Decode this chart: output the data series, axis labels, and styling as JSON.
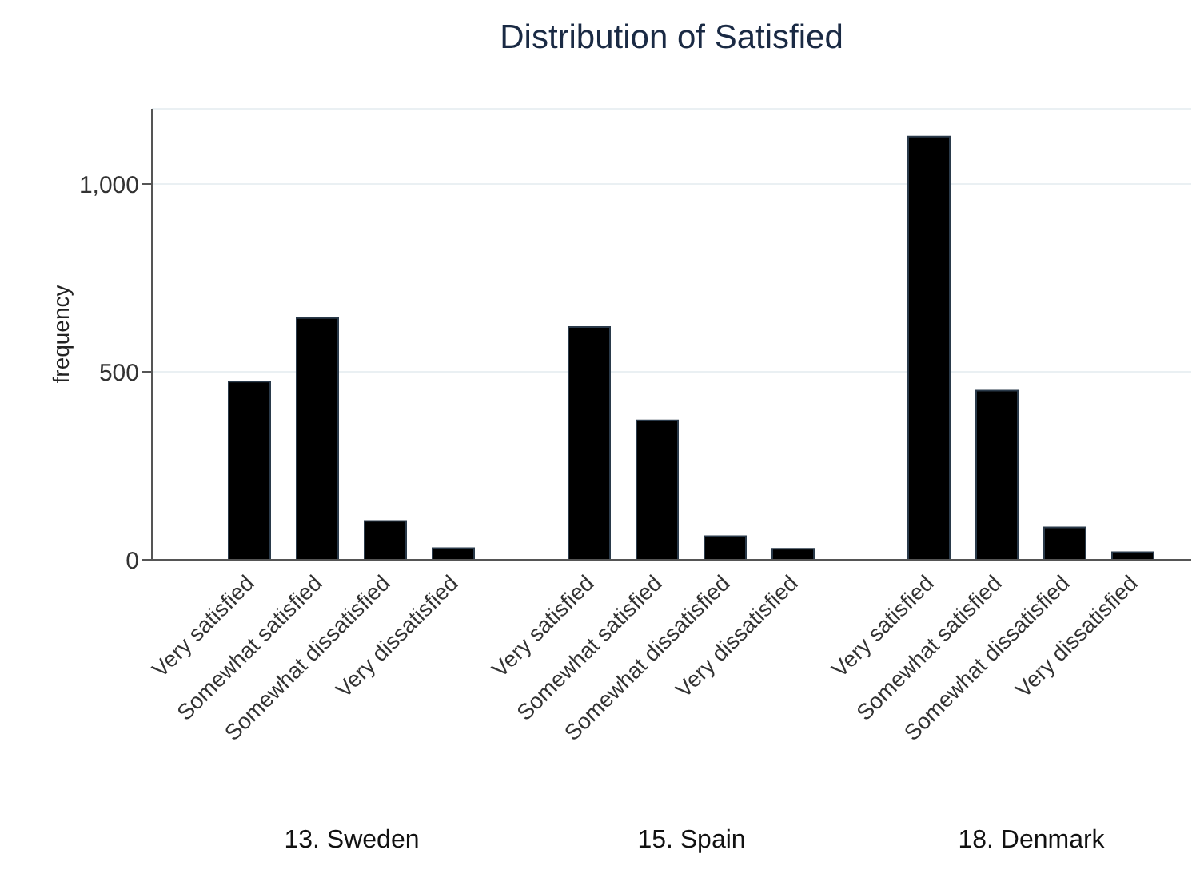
{
  "chart_data": {
    "type": "bar",
    "title": "Distribution of Satisfied",
    "ylabel": "frequency",
    "categories": [
      "Very satisfied",
      "Somewhat satisfied",
      "Somewhat dissatisfied",
      "Very dissatisfied",
      null,
      "Very satisfied",
      "Somewhat satisfied",
      "Somewhat dissatisfied",
      "Very dissatisfied",
      null,
      "Very satisfied",
      "Somewhat satisfied",
      "Somewhat dissatisfied",
      "Very dissatisfied"
    ],
    "values": [
      474,
      643,
      103,
      31,
      null,
      619,
      371,
      63,
      29,
      null,
      1126,
      450,
      86,
      20
    ],
    "color": "#000000",
    "ylim": [
      0,
      1200
    ],
    "yticks": [
      0,
      500,
      {
        "value": 1000,
        "label": "1,000"
      }
    ],
    "grid": "y",
    "annotations": [
      "13. Sweden",
      "15. Spain",
      "18. Denmark"
    ]
  }
}
